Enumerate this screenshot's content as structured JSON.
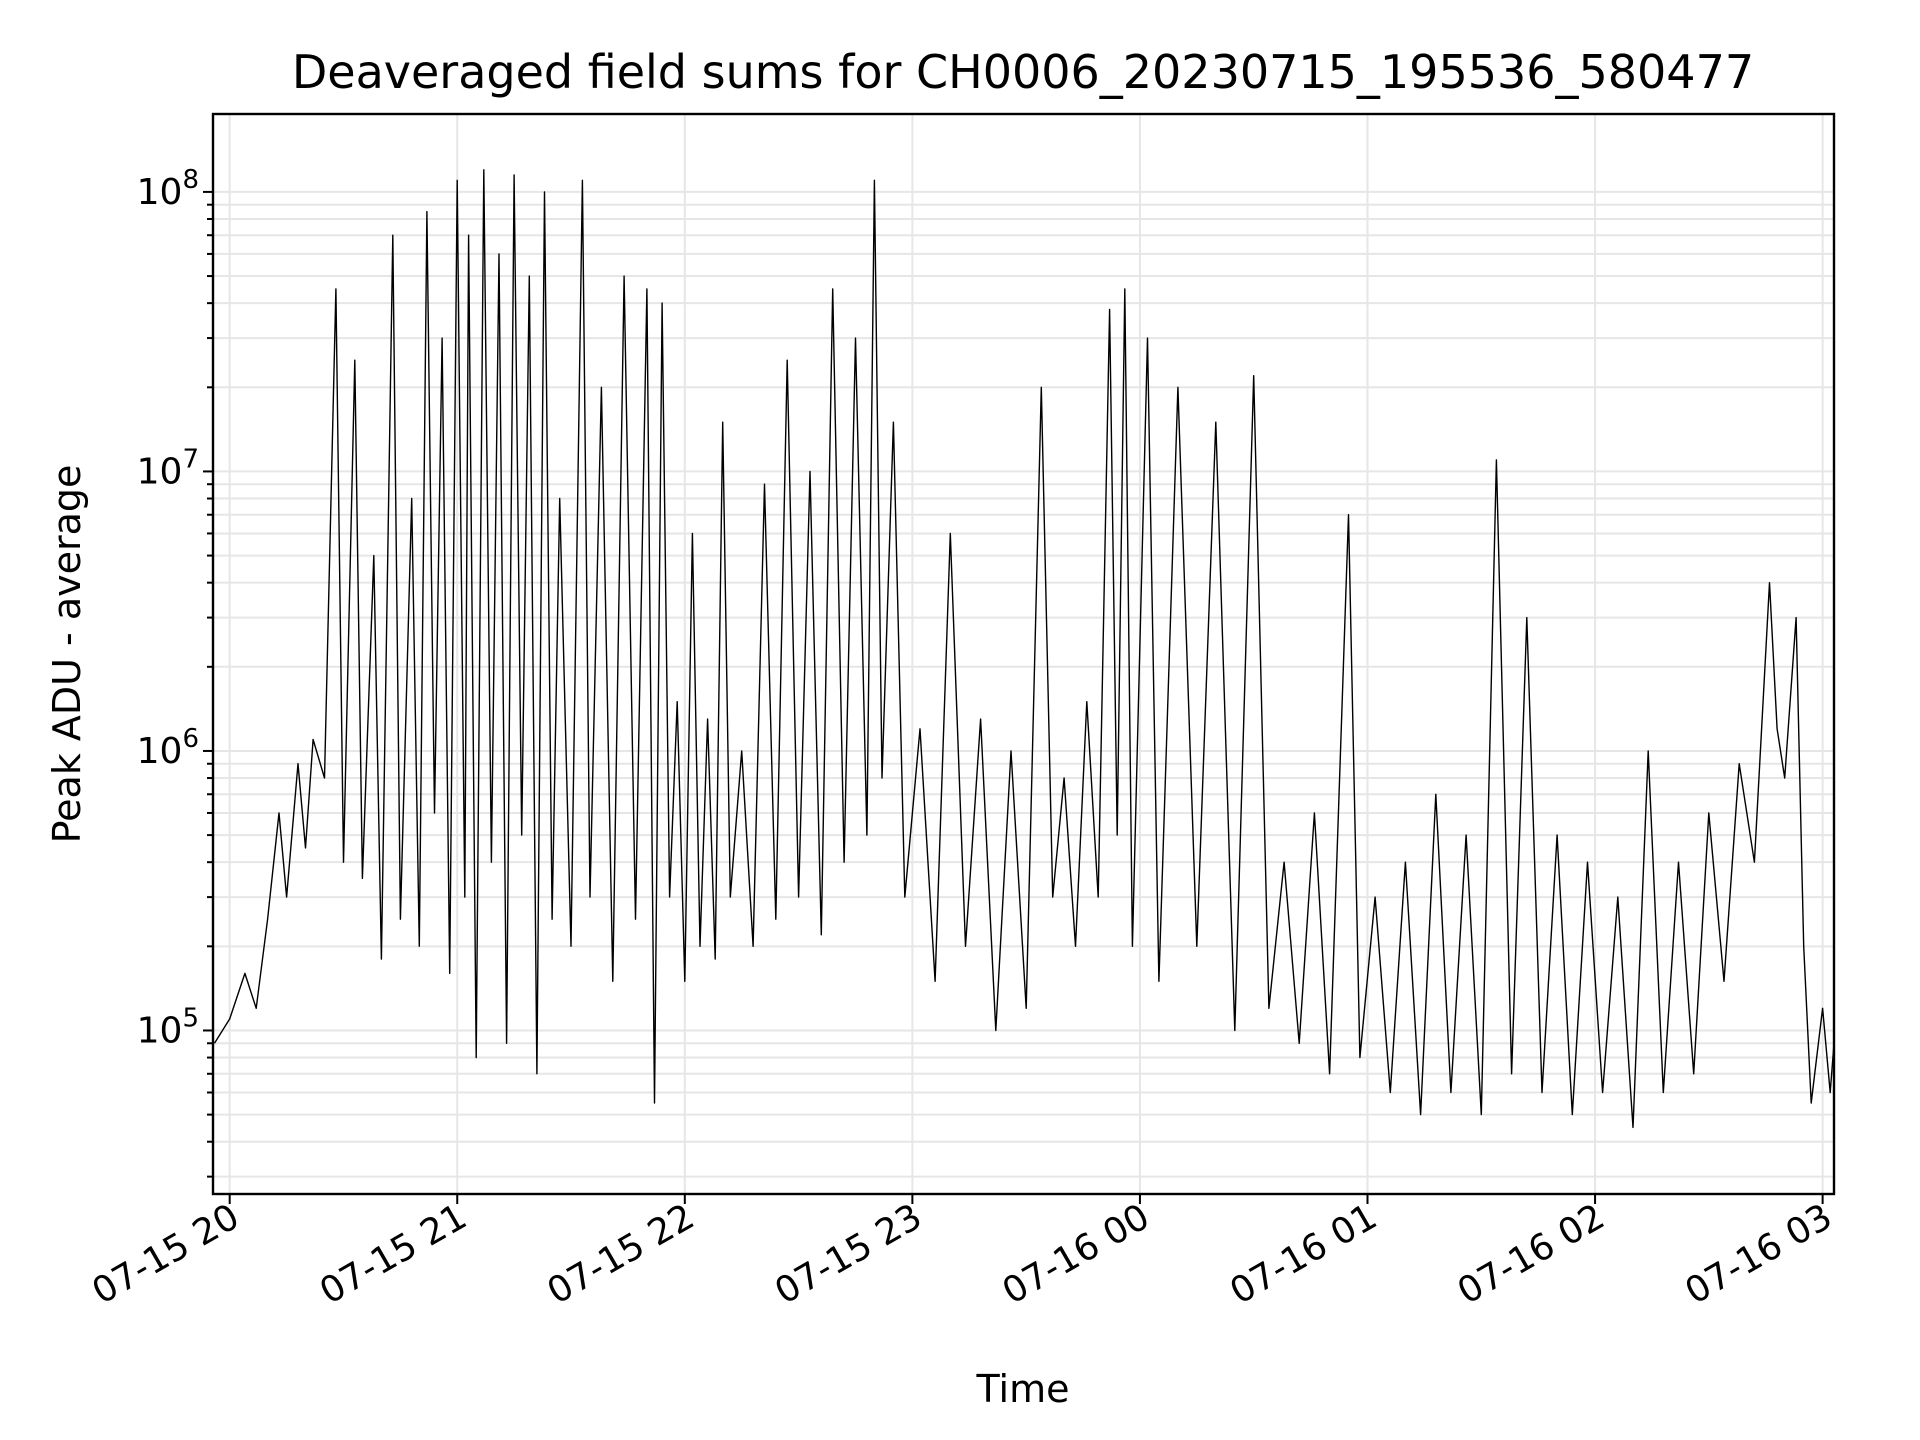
{
  "chart_data": {
    "type": "line",
    "title": "Deaveraged field sums for CH0006_20230715_195536_580477",
    "xlabel": "Time",
    "ylabel": "Peak ADU - average",
    "yscale": "log",
    "ylim": [
      26000,
      190000000
    ],
    "xlim": [
      "2023-07-15 19:55:36",
      "2023-07-16 03:03:00"
    ],
    "grid": true,
    "x_ticks": [
      "07-15 20",
      "07-15 21",
      "07-15 22",
      "07-15 23",
      "07-16 00",
      "07-16 01",
      "07-16 02",
      "07-16 03"
    ],
    "y_ticks": [
      {
        "base": "10",
        "exp": "5",
        "value": 100000
      },
      {
        "base": "10",
        "exp": "6",
        "value": 1000000
      },
      {
        "base": "10",
        "exp": "7",
        "value": 10000000
      },
      {
        "base": "10",
        "exp": "8",
        "value": 100000000
      }
    ],
    "series": [
      {
        "color": "#000000",
        "points": [
          [
            "07-15 19:56",
            90000
          ],
          [
            "07-15 20:00",
            110000
          ],
          [
            "07-15 20:04",
            160000
          ],
          [
            "07-15 20:07",
            120000
          ],
          [
            "07-15 20:10",
            250000
          ],
          [
            "07-15 20:13",
            600000
          ],
          [
            "07-15 20:15",
            300000
          ],
          [
            "07-15 20:18",
            900000
          ],
          [
            "07-15 20:20",
            450000
          ],
          [
            "07-15 20:22",
            1100000
          ],
          [
            "07-15 20:25",
            800000
          ],
          [
            "07-15 20:28",
            45000000
          ],
          [
            "07-15 20:30",
            400000
          ],
          [
            "07-15 20:33",
            25000000
          ],
          [
            "07-15 20:35",
            350000
          ],
          [
            "07-15 20:38",
            5000000
          ],
          [
            "07-15 20:40",
            180000
          ],
          [
            "07-15 20:43",
            70000000
          ],
          [
            "07-15 20:45",
            250000
          ],
          [
            "07-15 20:48",
            8000000
          ],
          [
            "07-15 20:50",
            200000
          ],
          [
            "07-15 20:52",
            85000000
          ],
          [
            "07-15 20:54",
            600000
          ],
          [
            "07-15 20:56",
            30000000
          ],
          [
            "07-15 20:58",
            160000
          ],
          [
            "07-15 21:00",
            110000000
          ],
          [
            "07-15 21:02",
            300000
          ],
          [
            "07-15 21:03",
            70000000
          ],
          [
            "07-15 21:05",
            80000
          ],
          [
            "07-15 21:07",
            120000000
          ],
          [
            "07-15 21:09",
            400000
          ],
          [
            "07-15 21:11",
            60000000
          ],
          [
            "07-15 21:13",
            90000
          ],
          [
            "07-15 21:15",
            115000000
          ],
          [
            "07-15 21:17",
            500000
          ],
          [
            "07-15 21:19",
            50000000
          ],
          [
            "07-15 21:21",
            70000
          ],
          [
            "07-15 21:23",
            100000000
          ],
          [
            "07-15 21:25",
            250000
          ],
          [
            "07-15 21:27",
            8000000
          ],
          [
            "07-15 21:30",
            200000
          ],
          [
            "07-15 21:33",
            110000000
          ],
          [
            "07-15 21:35",
            300000
          ],
          [
            "07-15 21:38",
            20000000
          ],
          [
            "07-15 21:41",
            150000
          ],
          [
            "07-15 21:44",
            50000000
          ],
          [
            "07-15 21:47",
            250000
          ],
          [
            "07-15 21:50",
            45000000
          ],
          [
            "07-15 21:52",
            55000
          ],
          [
            "07-15 21:54",
            40000000
          ],
          [
            "07-15 21:56",
            300000
          ],
          [
            "07-15 21:58",
            1500000
          ],
          [
            "07-15 22:00",
            150000
          ],
          [
            "07-15 22:02",
            6000000
          ],
          [
            "07-15 22:04",
            200000
          ],
          [
            "07-15 22:06",
            1300000
          ],
          [
            "07-15 22:08",
            180000
          ],
          [
            "07-15 22:10",
            15000000
          ],
          [
            "07-15 22:12",
            300000
          ],
          [
            "07-15 22:15",
            1000000
          ],
          [
            "07-15 22:18",
            200000
          ],
          [
            "07-15 22:21",
            9000000
          ],
          [
            "07-15 22:24",
            250000
          ],
          [
            "07-15 22:27",
            25000000
          ],
          [
            "07-15 22:30",
            300000
          ],
          [
            "07-15 22:33",
            10000000
          ],
          [
            "07-15 22:36",
            220000
          ],
          [
            "07-15 22:39",
            45000000
          ],
          [
            "07-15 22:42",
            400000
          ],
          [
            "07-15 22:45",
            30000000
          ],
          [
            "07-15 22:48",
            500000
          ],
          [
            "07-15 22:50",
            110000000
          ],
          [
            "07-15 22:52",
            800000
          ],
          [
            "07-15 22:55",
            15000000
          ],
          [
            "07-15 22:58",
            300000
          ],
          [
            "07-15 23:02",
            1200000
          ],
          [
            "07-15 23:06",
            150000
          ],
          [
            "07-15 23:10",
            6000000
          ],
          [
            "07-15 23:14",
            200000
          ],
          [
            "07-15 23:18",
            1300000
          ],
          [
            "07-15 23:22",
            100000
          ],
          [
            "07-15 23:26",
            1000000
          ],
          [
            "07-15 23:30",
            120000
          ],
          [
            "07-15 23:34",
            20000000
          ],
          [
            "07-15 23:37",
            300000
          ],
          [
            "07-15 23:40",
            800000
          ],
          [
            "07-15 23:43",
            200000
          ],
          [
            "07-15 23:46",
            1500000
          ],
          [
            "07-15 23:49",
            300000
          ],
          [
            "07-15 23:52",
            38000000
          ],
          [
            "07-15 23:54",
            500000
          ],
          [
            "07-15 23:56",
            45000000
          ],
          [
            "07-15 23:58",
            200000
          ],
          [
            "07-16 00:02",
            30000000
          ],
          [
            "07-16 00:05",
            150000
          ],
          [
            "07-16 00:10",
            20000000
          ],
          [
            "07-16 00:15",
            200000
          ],
          [
            "07-16 00:20",
            15000000
          ],
          [
            "07-16 00:25",
            100000
          ],
          [
            "07-16 00:30",
            22000000
          ],
          [
            "07-16 00:34",
            120000
          ],
          [
            "07-16 00:38",
            400000
          ],
          [
            "07-16 00:42",
            90000
          ],
          [
            "07-16 00:46",
            600000
          ],
          [
            "07-16 00:50",
            70000
          ],
          [
            "07-16 00:55",
            7000000
          ],
          [
            "07-16 00:58",
            80000
          ],
          [
            "07-16 01:02",
            300000
          ],
          [
            "07-16 01:06",
            60000
          ],
          [
            "07-16 01:10",
            400000
          ],
          [
            "07-16 01:14",
            50000
          ],
          [
            "07-16 01:18",
            700000
          ],
          [
            "07-16 01:22",
            60000
          ],
          [
            "07-16 01:26",
            500000
          ],
          [
            "07-16 01:30",
            50000
          ],
          [
            "07-16 01:34",
            11000000
          ],
          [
            "07-16 01:38",
            70000
          ],
          [
            "07-16 01:42",
            3000000
          ],
          [
            "07-16 01:46",
            60000
          ],
          [
            "07-16 01:50",
            500000
          ],
          [
            "07-16 01:54",
            50000
          ],
          [
            "07-16 01:58",
            400000
          ],
          [
            "07-16 02:02",
            60000
          ],
          [
            "07-16 02:06",
            300000
          ],
          [
            "07-16 02:10",
            45000
          ],
          [
            "07-16 02:14",
            1000000
          ],
          [
            "07-16 02:18",
            60000
          ],
          [
            "07-16 02:22",
            400000
          ],
          [
            "07-16 02:26",
            70000
          ],
          [
            "07-16 02:30",
            600000
          ],
          [
            "07-16 02:34",
            150000
          ],
          [
            "07-16 02:38",
            900000
          ],
          [
            "07-16 02:42",
            400000
          ],
          [
            "07-16 02:46",
            4000000
          ],
          [
            "07-16 02:48",
            1200000
          ],
          [
            "07-16 02:50",
            800000
          ],
          [
            "07-16 02:53",
            3000000
          ],
          [
            "07-16 02:55",
            200000
          ],
          [
            "07-16 02:57",
            55000
          ],
          [
            "07-16 03:00",
            120000
          ],
          [
            "07-16 03:02",
            60000
          ],
          [
            "07-16 03:03",
            90000
          ]
        ]
      }
    ]
  }
}
